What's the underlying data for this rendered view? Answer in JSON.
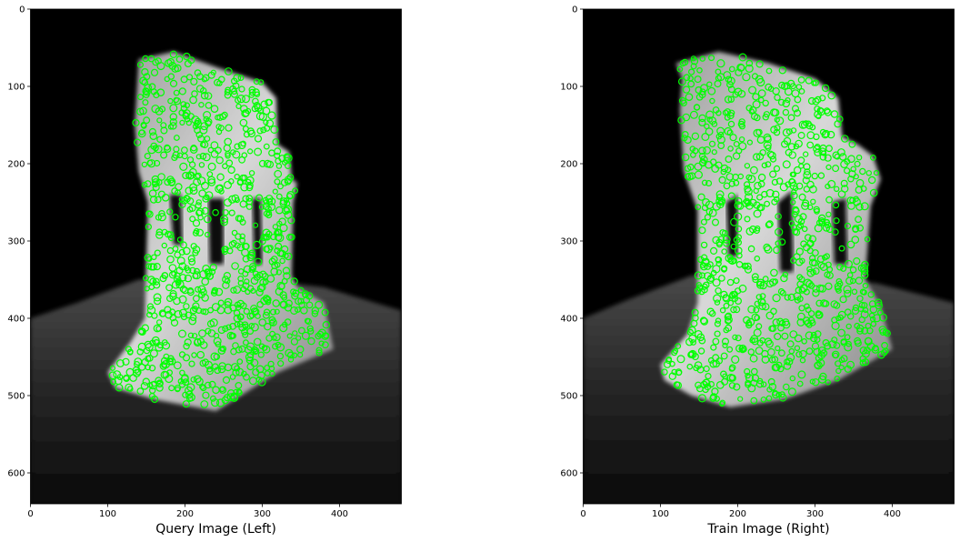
{
  "chart_data": [
    {
      "type": "image",
      "xlabel": "Query Image (Left)",
      "x_ticks": [
        0,
        100,
        200,
        300,
        400
      ],
      "y_ticks": [
        0,
        100,
        200,
        300,
        400,
        500,
        600
      ],
      "xlim": [
        0,
        480
      ],
      "ylim": [
        640,
        0
      ],
      "keypoint_color": "#00ff00",
      "background_color": "#000000",
      "object": {
        "outline": [
          [
            140,
            65
          ],
          [
            185,
            55
          ],
          [
            240,
            75
          ],
          [
            300,
            95
          ],
          [
            318,
            115
          ],
          [
            320,
            175
          ],
          [
            335,
            185
          ],
          [
            338,
            220
          ],
          [
            345,
            225
          ],
          [
            340,
            250
          ],
          [
            338,
            345
          ],
          [
            345,
            360
          ],
          [
            380,
            380
          ],
          [
            392,
            440
          ],
          [
            320,
            470
          ],
          [
            240,
            520
          ],
          [
            160,
            505
          ],
          [
            110,
            490
          ],
          [
            100,
            470
          ],
          [
            130,
            430
          ],
          [
            148,
            400
          ],
          [
            152,
            250
          ],
          [
            140,
            210
          ],
          [
            135,
            150
          ],
          [
            138,
            100
          ]
        ],
        "openings": [
          [
            [
              180,
              240
            ],
            [
              195,
              240
            ],
            [
              197,
              305
            ],
            [
              185,
              305
            ]
          ],
          [
            [
              230,
              245
            ],
            [
              250,
              245
            ],
            [
              250,
              330
            ],
            [
              232,
              330
            ]
          ],
          [
            [
              287,
              245
            ],
            [
              298,
              245
            ],
            [
              300,
              330
            ],
            [
              290,
              330
            ]
          ]
        ],
        "ground": [
          [
            0,
            400
          ],
          [
            60,
            380
          ],
          [
            140,
            350
          ],
          [
            250,
            345
          ],
          [
            380,
            360
          ],
          [
            480,
            390
          ],
          [
            480,
            640
          ],
          [
            0,
            640
          ]
        ]
      }
    },
    {
      "type": "image",
      "xlabel": "Train Image (Right)",
      "x_ticks": [
        0,
        100,
        200,
        300,
        400
      ],
      "y_ticks": [
        0,
        100,
        200,
        300,
        400,
        500,
        600
      ],
      "xlim": [
        0,
        480
      ],
      "ylim": [
        640,
        0
      ],
      "keypoint_color": "#00ff00",
      "background_color": "#000000",
      "object": {
        "outline": [
          [
            120,
            70
          ],
          [
            175,
            55
          ],
          [
            240,
            70
          ],
          [
            300,
            90
          ],
          [
            330,
            115
          ],
          [
            335,
            165
          ],
          [
            355,
            175
          ],
          [
            375,
            190
          ],
          [
            385,
            220
          ],
          [
            372,
            255
          ],
          [
            365,
            350
          ],
          [
            385,
            385
          ],
          [
            400,
            440
          ],
          [
            330,
            480
          ],
          [
            260,
            505
          ],
          [
            190,
            515
          ],
          [
            140,
            500
          ],
          [
            105,
            480
          ],
          [
            100,
            460
          ],
          [
            135,
            420
          ],
          [
            148,
            380
          ],
          [
            148,
            260
          ],
          [
            130,
            210
          ],
          [
            125,
            130
          ],
          [
            128,
            90
          ]
        ],
        "openings": [
          [
            [
              185,
              250
            ],
            [
              200,
              240
            ],
            [
              200,
              320
            ],
            [
              188,
              320
            ]
          ],
          [
            [
              252,
              250
            ],
            [
              270,
              235
            ],
            [
              272,
              340
            ],
            [
              255,
              340
            ]
          ],
          [
            [
              322,
              250
            ],
            [
              340,
              245
            ],
            [
              342,
              330
            ],
            [
              325,
              330
            ]
          ]
        ],
        "ground": [
          [
            0,
            400
          ],
          [
            60,
            375
          ],
          [
            140,
            345
          ],
          [
            250,
            340
          ],
          [
            380,
            355
          ],
          [
            480,
            380
          ],
          [
            480,
            640
          ],
          [
            0,
            640
          ]
        ]
      }
    }
  ]
}
